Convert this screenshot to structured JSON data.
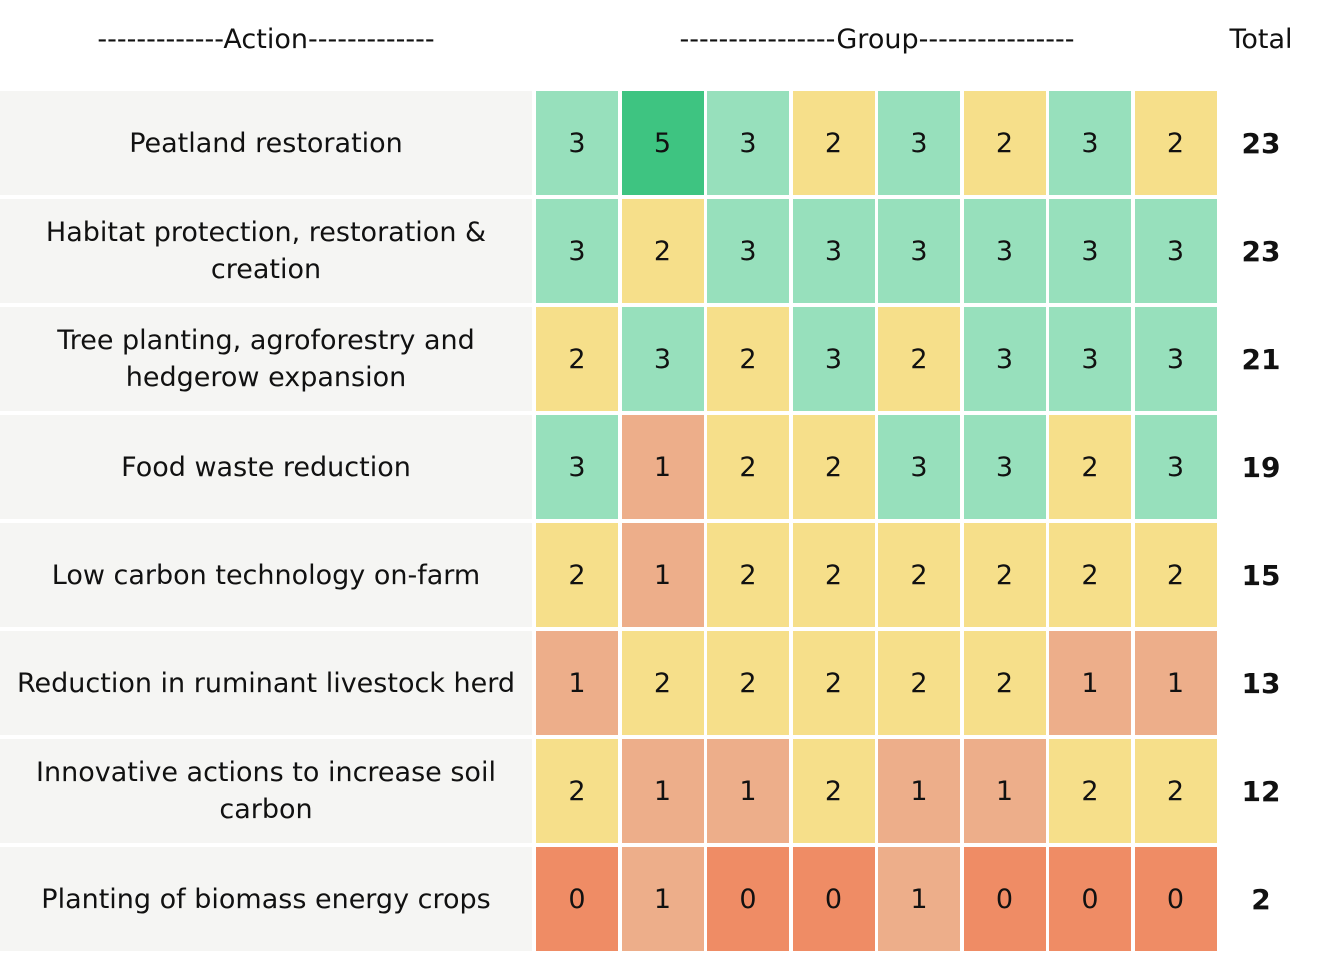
{
  "header": {
    "action": "-------------Action-------------",
    "group": "----------------Group----------------",
    "total": "Total"
  },
  "color_scale": [
    {
      "value": 0,
      "color": "#ef8c65"
    },
    {
      "value": 1,
      "color": "#edae8a"
    },
    {
      "value": 2,
      "color": "#f6df8a"
    },
    {
      "value": 3,
      "color": "#97e0bc"
    },
    {
      "value": 5,
      "color": "#3ec481"
    }
  ],
  "table": {
    "rows": [
      {
        "action": "Peatland restoration",
        "scores": [
          3,
          5,
          3,
          2,
          3,
          2,
          3,
          2
        ],
        "total": 23
      },
      {
        "action": "Habitat protection, restoration & creation",
        "scores": [
          3,
          2,
          3,
          3,
          3,
          3,
          3,
          3
        ],
        "total": 23
      },
      {
        "action": "Tree planting, agroforestry and hedgerow expansion",
        "scores": [
          2,
          3,
          2,
          3,
          2,
          3,
          3,
          3
        ],
        "total": 21
      },
      {
        "action": "Food waste reduction",
        "scores": [
          3,
          1,
          2,
          2,
          3,
          3,
          2,
          3
        ],
        "total": 19
      },
      {
        "action": "Low carbon technology on-farm",
        "scores": [
          2,
          1,
          2,
          2,
          2,
          2,
          2,
          2
        ],
        "total": 15
      },
      {
        "action": "Reduction in ruminant livestock herd",
        "scores": [
          1,
          2,
          2,
          2,
          2,
          2,
          1,
          1
        ],
        "total": 13
      },
      {
        "action": "Innovative actions to increase soil carbon",
        "scores": [
          2,
          1,
          1,
          2,
          1,
          1,
          2,
          2
        ],
        "total": 12
      },
      {
        "action": "Planting of biomass energy crops",
        "scores": [
          0,
          1,
          0,
          0,
          1,
          0,
          0,
          0
        ],
        "total": 2
      }
    ]
  }
}
